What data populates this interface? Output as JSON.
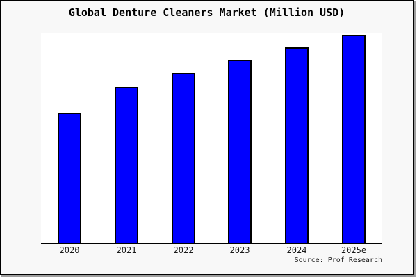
{
  "title": "Global Denture Cleaners Market (Million USD)",
  "source_note": "Source: Prof Research",
  "colors": {
    "bar_fill": "#0000ff",
    "bar_edge": "#000000",
    "plot_background": "#ffffff",
    "canvas_background": "#f8f8f8",
    "axis_line": "#000000"
  },
  "chart_data": {
    "type": "bar",
    "title": "Global Denture Cleaners Market (Million USD)",
    "categories": [
      "2020",
      "2021",
      "2022",
      "2023",
      "2024",
      "2025e"
    ],
    "values": [
      62.3,
      74.7,
      81.2,
      87.5,
      93.5,
      99.8
    ],
    "note": "No y-axis ticks or gridlines shown; values estimated from bar heights as relative index where 2025e ≈ 100",
    "xlabel": "",
    "ylabel": "",
    "ylim": [
      0,
      100
    ],
    "grid": false,
    "legend_position": "none",
    "bar_color": "#0000ff",
    "bar_edge_color": "#000000",
    "source": "Source: Prof Research"
  }
}
